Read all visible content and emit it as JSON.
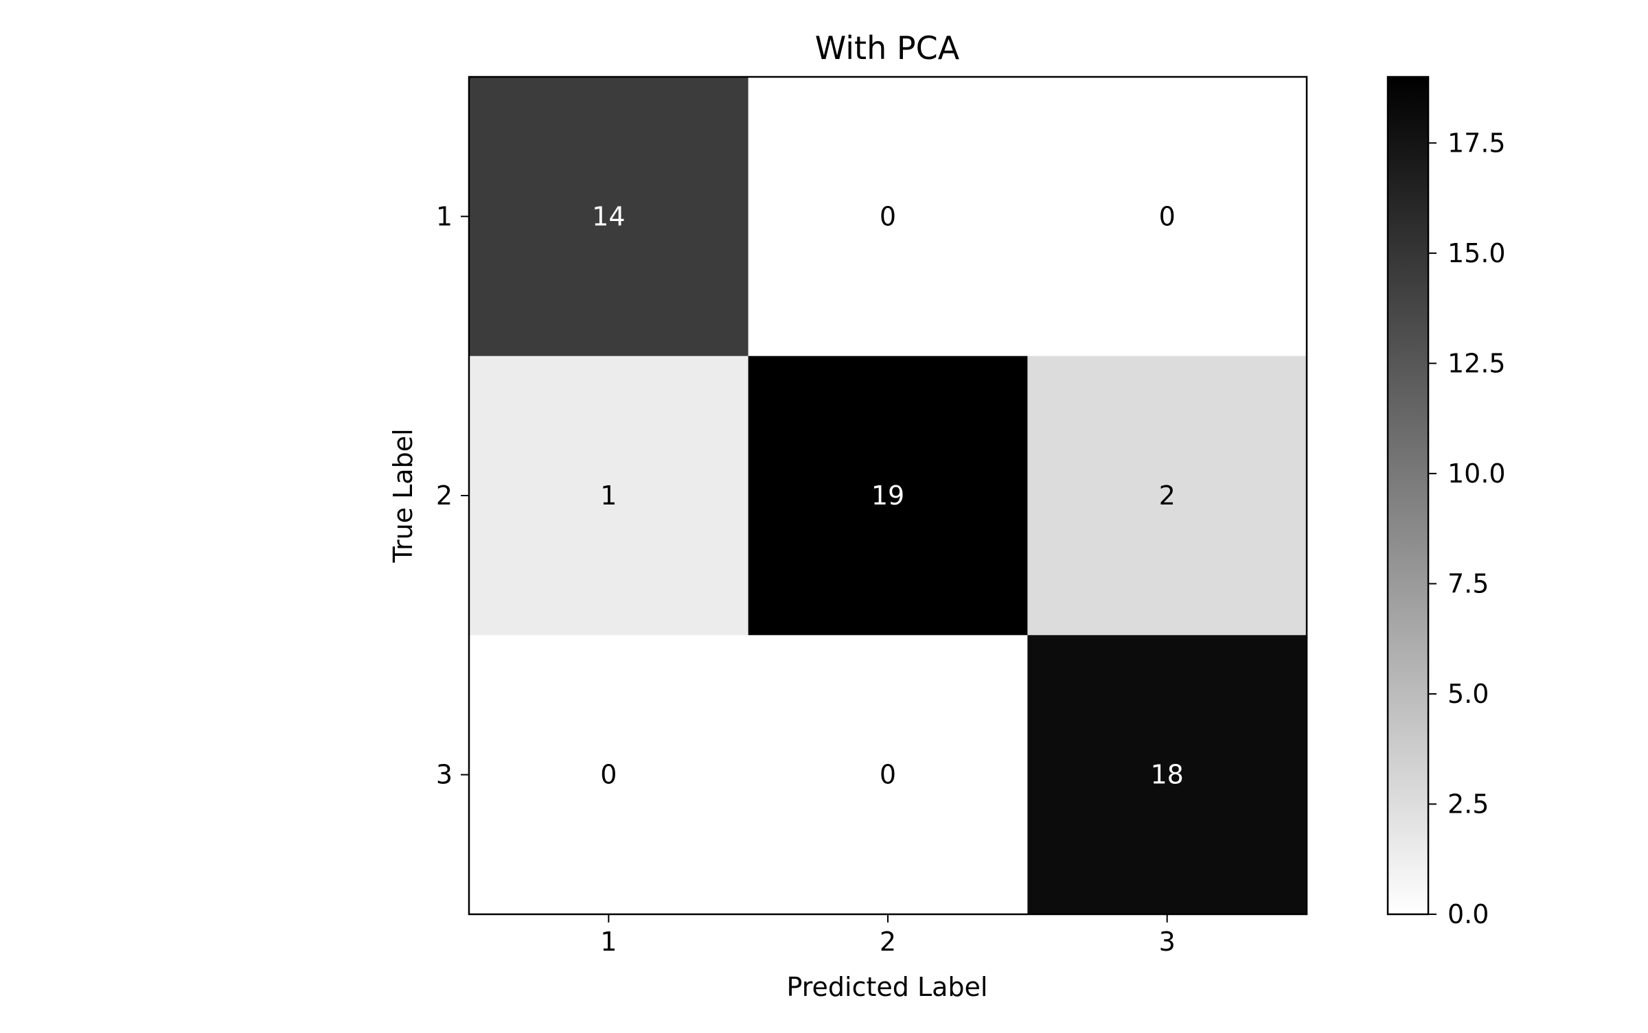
{
  "chart_data": {
    "type": "heatmap",
    "title": "With PCA",
    "xlabel": "Predicted Label",
    "ylabel": "True Label",
    "x_categories": [
      "1",
      "2",
      "3"
    ],
    "y_categories": [
      "1",
      "2",
      "3"
    ],
    "values": [
      [
        14,
        0,
        0
      ],
      [
        1,
        19,
        2
      ],
      [
        0,
        0,
        18
      ]
    ],
    "colormap": "Greys",
    "colorbar": {
      "range": [
        0,
        19
      ],
      "ticks": [
        0.0,
        2.5,
        5.0,
        7.5,
        10.0,
        12.5,
        15.0,
        17.5
      ],
      "tick_labels": [
        "0.0",
        "2.5",
        "5.0",
        "7.5",
        "10.0",
        "12.5",
        "15.0",
        "17.5"
      ]
    },
    "grid": false
  }
}
